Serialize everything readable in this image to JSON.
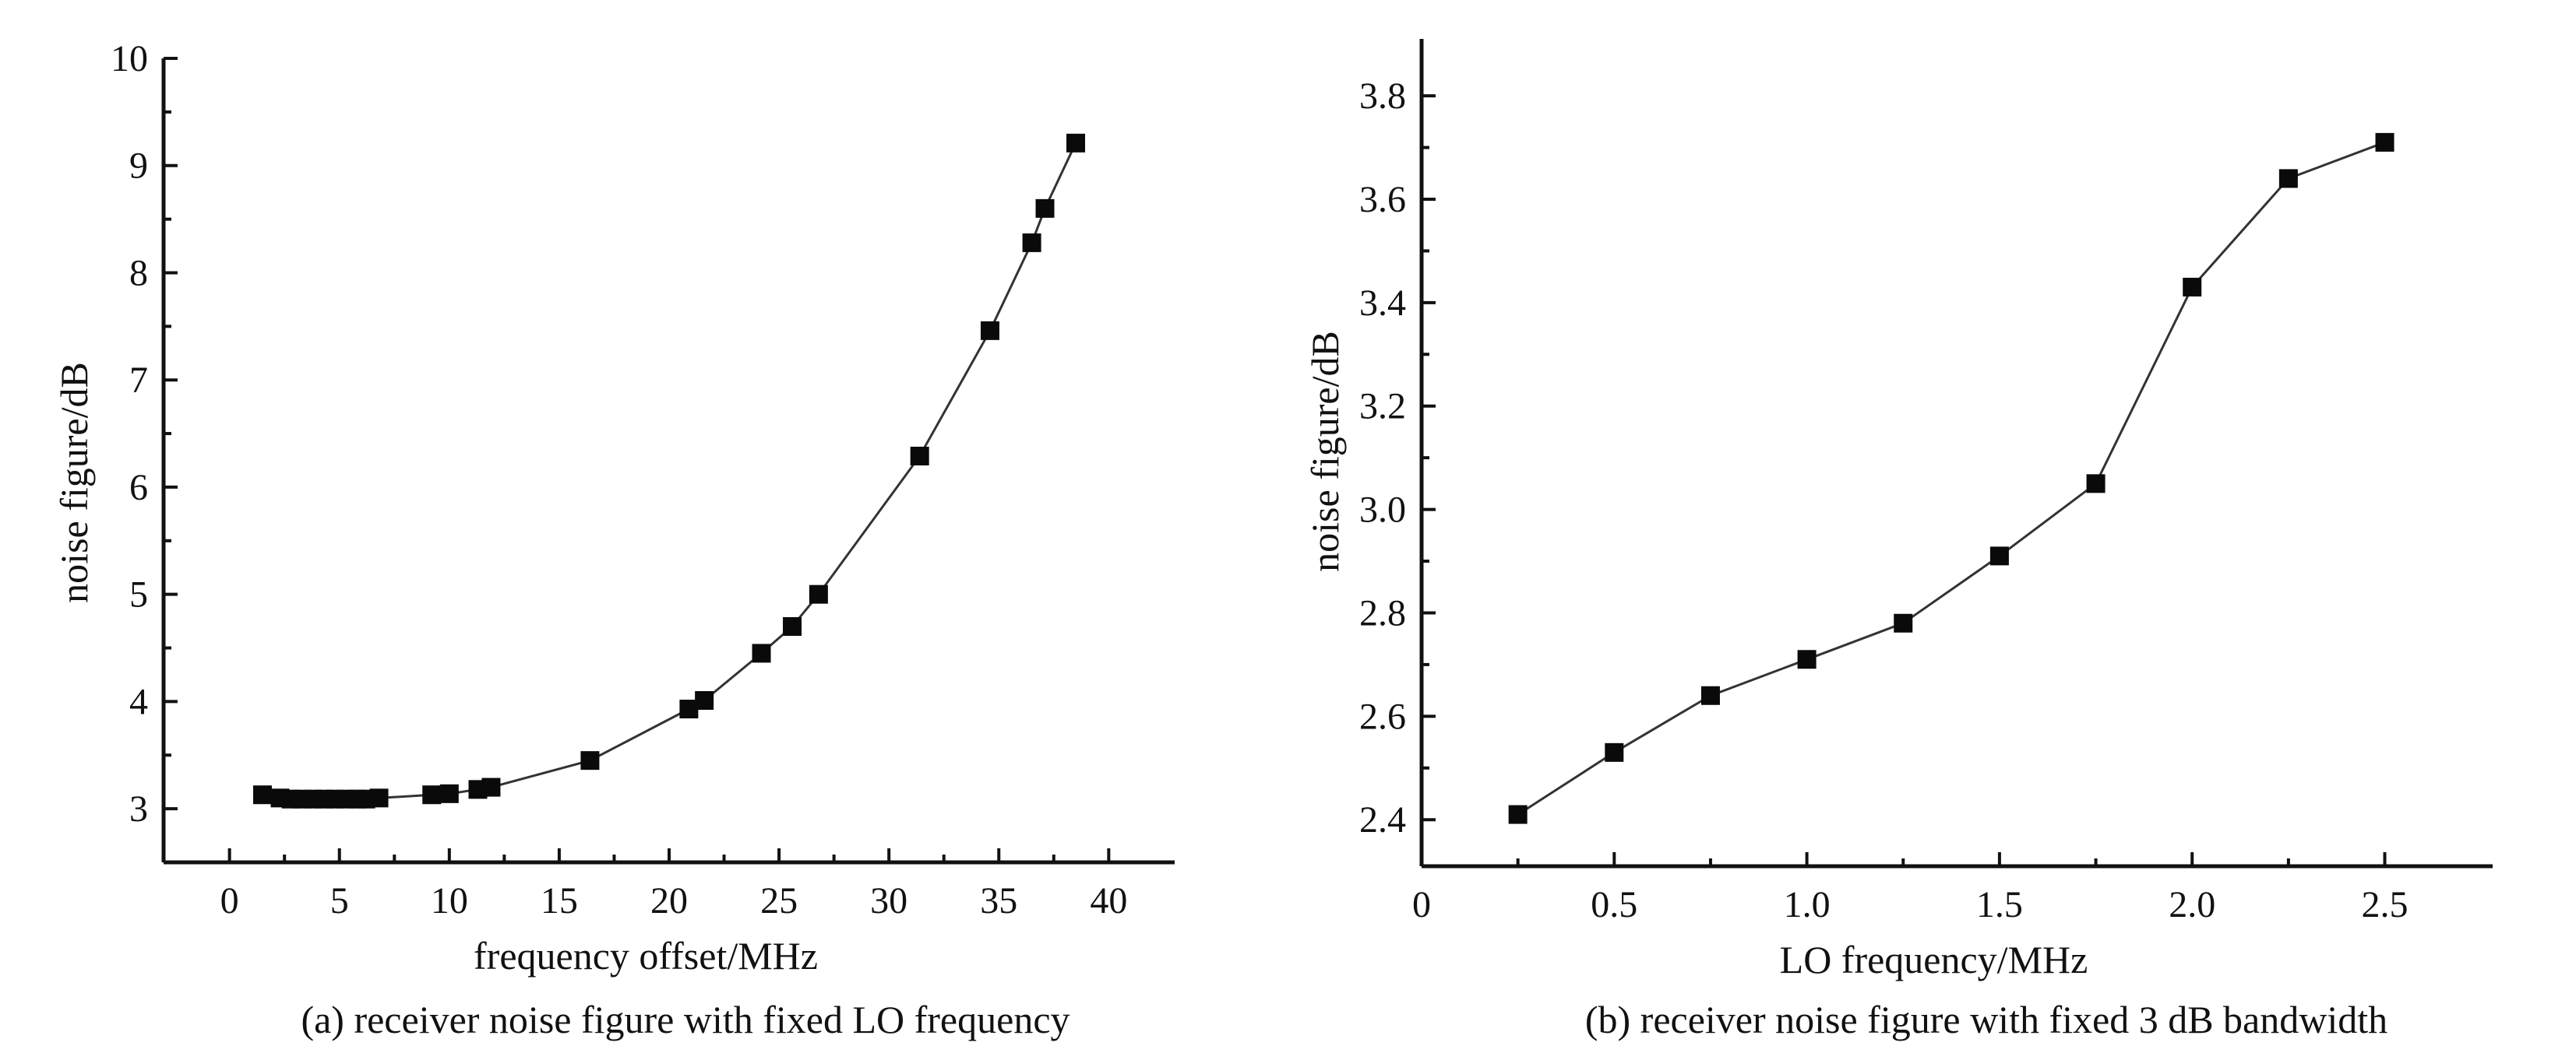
{
  "chart_data": [
    {
      "type": "line",
      "caption": "(a) receiver noise figure with fixed LO frequency",
      "xlabel": "frequency offset/MHz",
      "ylabel": "noise figure/dB",
      "xlim": [
        -3,
        43
      ],
      "ylim": [
        2.5,
        10
      ],
      "xticks": [
        0,
        5,
        10,
        15,
        20,
        25,
        30,
        35,
        40
      ],
      "yticks": [
        3,
        4,
        5,
        6,
        7,
        8,
        9,
        10
      ],
      "grid": false,
      "series": [
        {
          "x": [
            1.5,
            2.3,
            2.8,
            3.3,
            3.8,
            4.3,
            4.8,
            5.3,
            5.8,
            6.2,
            6.8,
            9.2,
            10.0,
            11.3,
            11.9,
            16.4,
            20.9,
            21.6,
            24.2,
            25.6,
            26.8,
            31.4,
            34.6,
            36.5,
            37.1,
            38.5
          ],
          "y": [
            3.13,
            3.1,
            3.09,
            3.09,
            3.09,
            3.09,
            3.09,
            3.09,
            3.09,
            3.09,
            3.1,
            3.13,
            3.14,
            3.18,
            3.2,
            3.45,
            3.93,
            4.01,
            4.45,
            4.7,
            5.0,
            6.29,
            7.46,
            8.28,
            8.6,
            9.21
          ]
        }
      ]
    },
    {
      "type": "line",
      "caption": "(b) receiver noise figure with fixed 3 dB bandwidth",
      "xlabel": "LO frequency/MHz",
      "ylabel": "noise figure/dB",
      "xlim": [
        0,
        2.78
      ],
      "ylim": [
        2.31,
        3.91
      ],
      "xticks": [
        "0",
        "0.5",
        "1.0",
        "1.5",
        "2.0",
        "2.5"
      ],
      "yticks": [
        "2.4",
        "2.6",
        "2.8",
        "3.0",
        "3.2",
        "3.4",
        "3.6",
        "3.8"
      ],
      "grid": false,
      "series": [
        {
          "x": [
            0.25,
            0.5,
            0.75,
            1.0,
            1.25,
            1.5,
            1.75,
            2.0,
            2.25,
            2.5
          ],
          "y": [
            2.41,
            2.53,
            2.64,
            2.71,
            2.78,
            2.91,
            3.05,
            3.43,
            3.64,
            3.71
          ]
        }
      ]
    }
  ]
}
